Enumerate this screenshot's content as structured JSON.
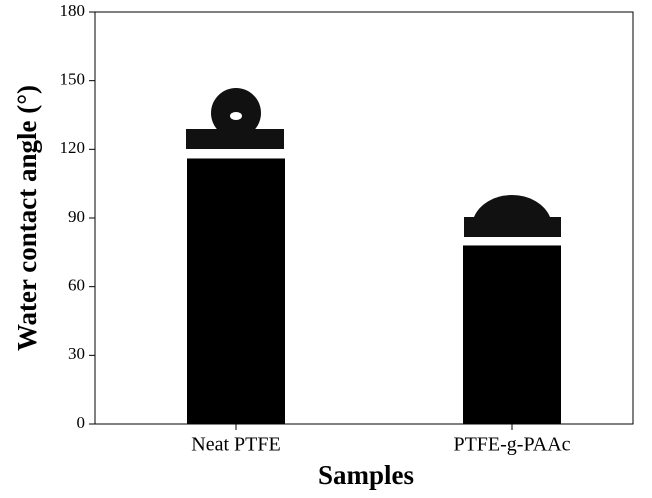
{
  "chart_data": {
    "type": "bar",
    "x_label": "Samples",
    "y_label": "Water contact angle (°)",
    "categories": [
      "Neat PTFE",
      "PTFE-g-PAAc"
    ],
    "values": [
      116,
      78
    ],
    "color": "#000000",
    "ylim": [
      0,
      180
    ],
    "yticks": [
      0,
      30,
      60,
      90,
      120,
      150,
      180
    ]
  }
}
